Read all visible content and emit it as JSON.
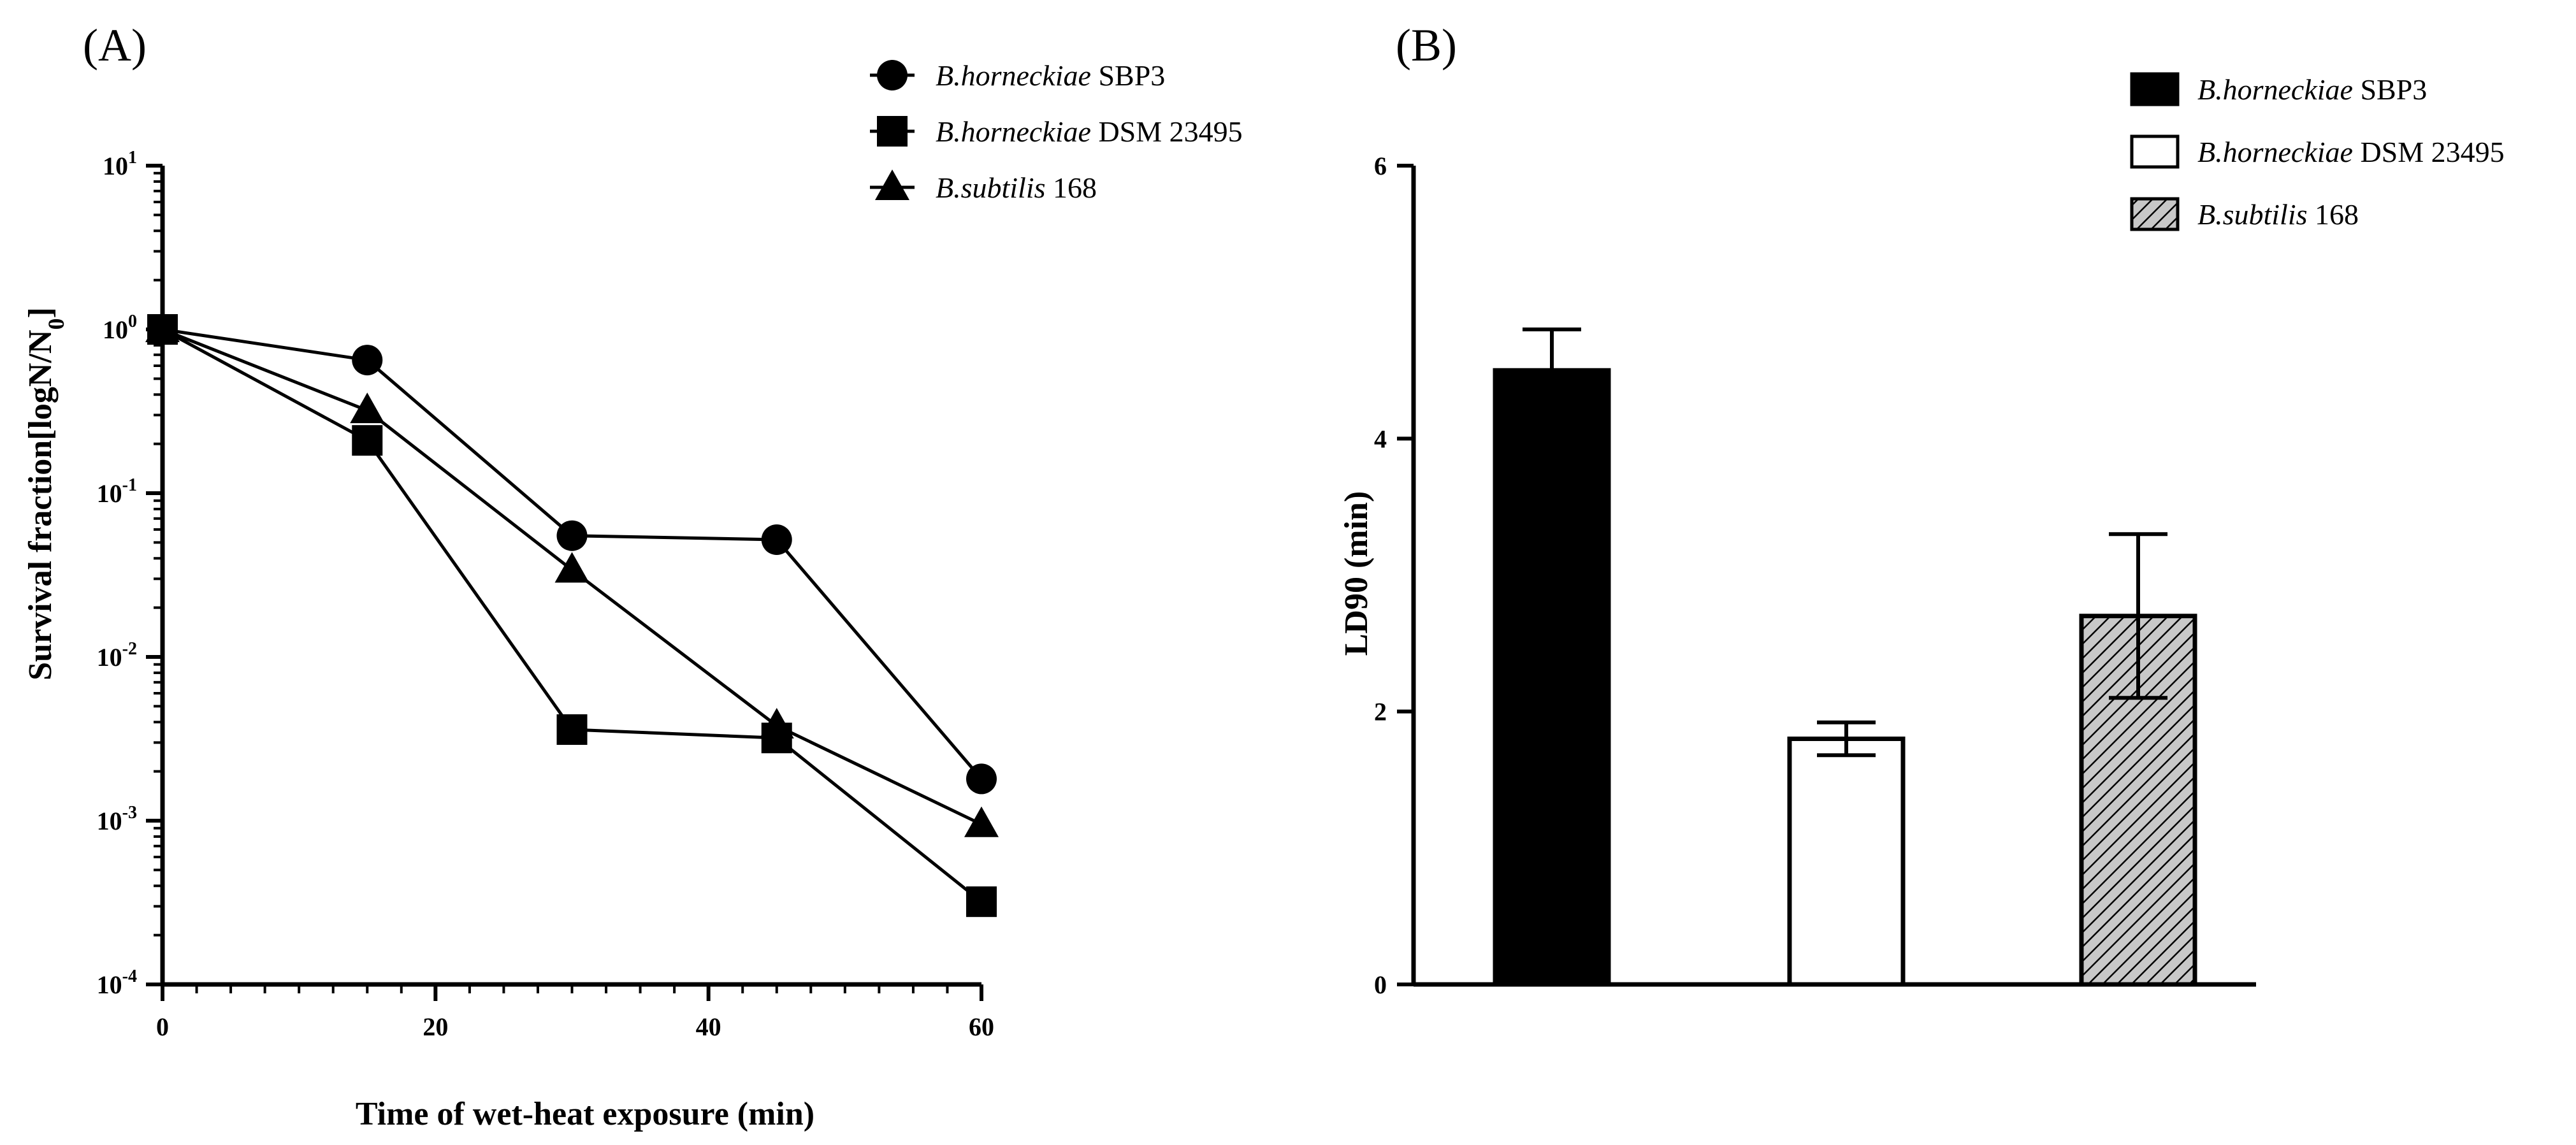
{
  "colors": {
    "ink": "#000000",
    "open": "#ffffff",
    "hatch_bg": "#c8c8c8"
  },
  "chart_data": [
    {
      "type": "line",
      "panel_label": "(A)",
      "title": "",
      "xlabel": "Time of wet-heat exposure  (min)",
      "ylabel": "Survival fraction[logN/N0]",
      "yscale": "log",
      "xlim": [
        0,
        60
      ],
      "ylim": [
        0.0001,
        10
      ],
      "x_ticks": [
        {
          "value": 0,
          "label": "0"
        },
        {
          "value": 20,
          "label": "20"
        },
        {
          "value": 40,
          "label": "40"
        },
        {
          "value": 60,
          "label": "60"
        }
      ],
      "y_ticks": [
        {
          "value": 10,
          "base": "10",
          "exp": "1"
        },
        {
          "value": 1,
          "base": "10",
          "exp": "0"
        },
        {
          "value": 0.1,
          "base": "10",
          "exp": "-1"
        },
        {
          "value": 0.01,
          "base": "10",
          "exp": "-2"
        },
        {
          "value": 0.001,
          "base": "10",
          "exp": "-3"
        },
        {
          "value": 0.0001,
          "base": "10",
          "exp": "-4"
        }
      ],
      "x": [
        0,
        15,
        30,
        45,
        60
      ],
      "series": [
        {
          "name": "B.horneckiae SBP3",
          "italic": "B.horneckiae",
          "plain": " SBP3",
          "marker": "circle",
          "values": [
            1.0,
            0.65,
            0.055,
            0.052,
            0.0018
          ]
        },
        {
          "name": "B.horneckiae DSM 23495",
          "italic": "B.horneckiae",
          "plain": " DSM 23495",
          "marker": "square",
          "values": [
            1.0,
            0.21,
            0.0036,
            0.0032,
            0.00032
          ]
        },
        {
          "name": "B.subtilis 168",
          "italic": "B.subtilis",
          "plain": " 168",
          "marker": "triangle",
          "values": [
            1.0,
            0.32,
            0.034,
            0.0038,
            0.00095
          ]
        }
      ],
      "legend": "top-right"
    },
    {
      "type": "bar",
      "panel_label": "(B)",
      "title": "",
      "xlabel": "",
      "ylabel": "LD90 (min)",
      "ylim": [
        0,
        6
      ],
      "y_ticks": [
        {
          "value": 0,
          "label": "0"
        },
        {
          "value": 2,
          "label": "2"
        },
        {
          "value": 4,
          "label": "4"
        },
        {
          "value": 6,
          "label": "6"
        }
      ],
      "series": [
        {
          "name": "B.horneckiae SBP3",
          "italic": "B.horneckiae",
          "plain": " SBP3",
          "fill": "solid",
          "value": 4.5,
          "error": 0.3
        },
        {
          "name": "B.horneckiae DSM 23495",
          "italic": "B.horneckiae",
          "plain": " DSM 23495",
          "fill": "open",
          "value": 1.8,
          "error": 0.12
        },
        {
          "name": "B.subtilis 168",
          "italic": "B.subtilis",
          "plain": " 168",
          "fill": "hatched",
          "value": 2.7,
          "error": 0.6
        }
      ],
      "legend": "top-right"
    }
  ]
}
